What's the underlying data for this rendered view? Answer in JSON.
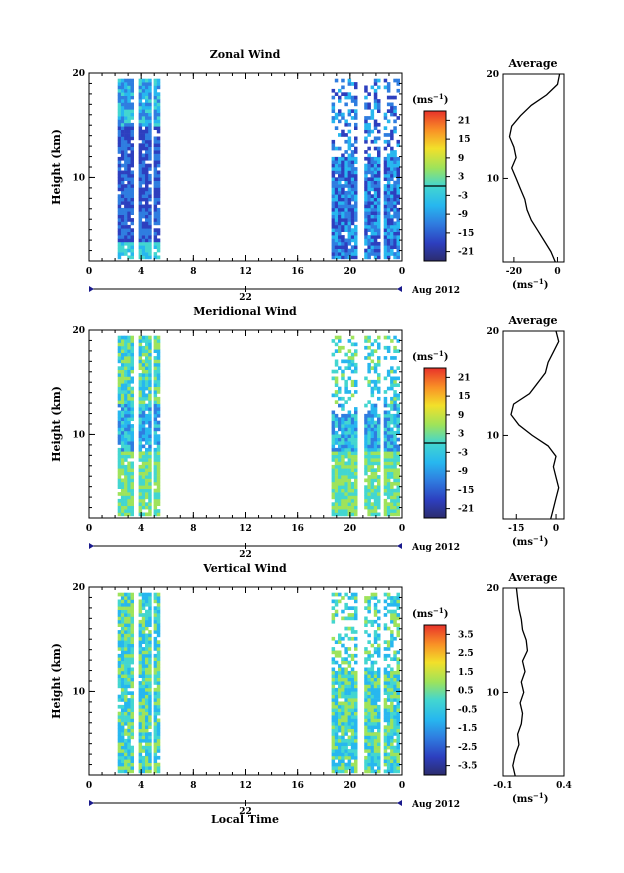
{
  "x_label": "Local Time",
  "colorbar_unit": "(ms",
  "colorbar_unit_sup": "−1",
  "avg_unit": "(ms",
  "avg_unit_sup": "−1",
  "chart_data": [
    {
      "type": "heatmap",
      "title": "Zonal Wind",
      "xlabel": "",
      "ylabel": "Height (km)",
      "xlim": [
        0,
        24
      ],
      "ylim": [
        2,
        20
      ],
      "x_ticks": [
        "0",
        "4",
        "8",
        "12",
        "16",
        "20",
        "0"
      ],
      "y_ticks": [
        "10",
        "20"
      ],
      "date_ticks": [
        "22"
      ],
      "date_suffix": "Aug 2012",
      "colorbar_ticks": [
        "21",
        "15",
        "9",
        "3",
        "-3",
        "-9",
        "-15",
        "-21"
      ],
      "colorbar_range": [
        -24,
        24
      ],
      "data_segments": [
        [
          2.2,
          3.2
        ],
        [
          3.8,
          4.6
        ],
        [
          4.95,
          5.35
        ],
        [
          18.6,
          20.5
        ],
        [
          21.1,
          22.2
        ],
        [
          22.6,
          23.8
        ]
      ],
      "profile": {
        "title": "Average",
        "x_ticks": [
          "-20",
          "0"
        ],
        "xlim": [
          -25,
          3
        ],
        "heights": [
          2,
          3,
          4,
          5,
          6,
          7,
          8,
          9,
          10,
          11,
          12,
          13,
          14,
          15,
          16,
          17,
          18,
          19,
          20
        ],
        "values": [
          -1,
          -3,
          -6,
          -9,
          -12,
          -14,
          -15,
          -17,
          -19,
          -21,
          -19,
          -20,
          -22,
          -21,
          -17,
          -12,
          -5,
          0,
          1
        ]
      }
    },
    {
      "type": "heatmap",
      "title": "Meridional Wind",
      "xlabel": "",
      "ylabel": "Height (km)",
      "xlim": [
        0,
        24
      ],
      "ylim": [
        2,
        20
      ],
      "x_ticks": [
        "0",
        "4",
        "8",
        "12",
        "16",
        "20",
        "0"
      ],
      "y_ticks": [
        "10",
        "20"
      ],
      "date_ticks": [
        "22"
      ],
      "date_suffix": "Aug 2012",
      "colorbar_ticks": [
        "21",
        "15",
        "9",
        "3",
        "-3",
        "-9",
        "-15",
        "-21"
      ],
      "colorbar_range": [
        -24,
        24
      ],
      "data_segments": [
        [
          2.2,
          3.2
        ],
        [
          3.8,
          4.6
        ],
        [
          4.95,
          5.35
        ],
        [
          18.6,
          20.5
        ],
        [
          21.1,
          22.2
        ],
        [
          22.6,
          23.8
        ]
      ],
      "profile": {
        "title": "Average",
        "x_ticks": [
          "-15",
          "0"
        ],
        "xlim": [
          -20,
          3
        ],
        "heights": [
          2,
          3,
          4,
          5,
          6,
          7,
          8,
          9,
          10,
          11,
          12,
          13,
          14,
          15,
          16,
          17,
          18,
          19,
          20
        ],
        "values": [
          -2,
          -1,
          0,
          1,
          0,
          -1,
          0,
          -3,
          -9,
          -14,
          -17,
          -16,
          -10,
          -7,
          -4,
          -3,
          -1,
          1,
          0
        ]
      }
    },
    {
      "type": "heatmap",
      "title": "Vertical Wind",
      "xlabel": "Local Time",
      "ylabel": "Height (km)",
      "xlim": [
        0,
        24
      ],
      "ylim": [
        2,
        20
      ],
      "x_ticks": [
        "0",
        "4",
        "8",
        "12",
        "16",
        "20",
        "0"
      ],
      "y_ticks": [
        "10",
        "20"
      ],
      "date_ticks": [
        "22"
      ],
      "date_suffix": "Aug 2012",
      "colorbar_ticks": [
        "3.5",
        "2.5",
        "1.5",
        "0.5",
        "-0.5",
        "-1.5",
        "-2.5",
        "-3.5"
      ],
      "colorbar_range": [
        -4,
        4
      ],
      "data_segments": [
        [
          2.2,
          3.2
        ],
        [
          3.8,
          4.6
        ],
        [
          4.95,
          5.35
        ],
        [
          18.6,
          20.5
        ],
        [
          21.1,
          22.2
        ],
        [
          22.6,
          23.8
        ]
      ],
      "profile": {
        "title": "Average",
        "x_ticks": [
          "-0.1",
          "0.4"
        ],
        "xlim": [
          -0.1,
          0.4
        ],
        "heights": [
          2,
          3,
          4,
          5,
          6,
          7,
          8,
          9,
          10,
          11,
          12,
          13,
          14,
          15,
          16,
          17,
          18,
          19,
          20
        ],
        "values": [
          0.0,
          -0.02,
          0.0,
          0.03,
          0.02,
          0.05,
          0.06,
          0.04,
          0.07,
          0.05,
          0.08,
          0.06,
          0.1,
          0.09,
          0.06,
          0.05,
          0.03,
          0.02,
          0.01
        ]
      }
    }
  ]
}
